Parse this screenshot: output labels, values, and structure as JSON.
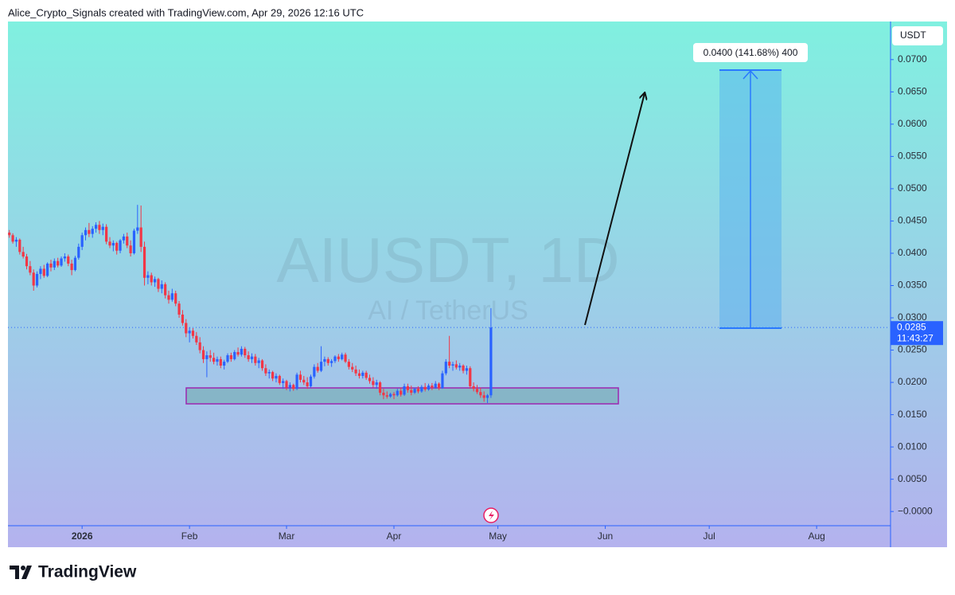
{
  "header": {
    "credit": "Alice_Crypto_Signals created with TradingView.com, Apr 29, 2026 12:16 UTC"
  },
  "chart_data": {
    "type": "candlestick",
    "symbol": "AIUSDT, 1D",
    "description": "AI / TetherUS",
    "currency": "USDT",
    "up_color": "#2962ff",
    "down_color": "#f23645",
    "x": [
      -21,
      -20,
      -19,
      -18,
      -17,
      -16,
      -15,
      -14,
      -13,
      -12,
      -11,
      -10,
      -9,
      -8,
      -7,
      -6,
      -5,
      -4,
      -3,
      -2,
      -1,
      0,
      1,
      2,
      3,
      4,
      5,
      6,
      7,
      8,
      9,
      10,
      11,
      12,
      13,
      14,
      15,
      16,
      17,
      18,
      19,
      20,
      21,
      22,
      23,
      24,
      25,
      26,
      27,
      28,
      29,
      30,
      31,
      32,
      33,
      34,
      35,
      36,
      37,
      38,
      39,
      40,
      41,
      42,
      43,
      44,
      45,
      46,
      47,
      48,
      49,
      50,
      51,
      52,
      53,
      54,
      55,
      56,
      57,
      58,
      59,
      60,
      61,
      62,
      63,
      64,
      65,
      66,
      67,
      68,
      69,
      70,
      71,
      72,
      73,
      74,
      75,
      76,
      77,
      78,
      79,
      80,
      81,
      82,
      83,
      84,
      85,
      86,
      87,
      88,
      89,
      90,
      91,
      92,
      93,
      94,
      95,
      96,
      97,
      98,
      99,
      100,
      101,
      102,
      103,
      104,
      105,
      106,
      107,
      108,
      109,
      110,
      111,
      112,
      113,
      114,
      115,
      116,
      117,
      118
    ],
    "ohlc": [
      [
        0.0432,
        0.0436,
        0.0424,
        0.0428
      ],
      [
        0.0428,
        0.0431,
        0.0415,
        0.0418
      ],
      [
        0.0418,
        0.0425,
        0.041,
        0.0421
      ],
      [
        0.0421,
        0.0423,
        0.0398,
        0.0402
      ],
      [
        0.0402,
        0.041,
        0.0392,
        0.0395
      ],
      [
        0.0395,
        0.0399,
        0.0375,
        0.038
      ],
      [
        0.038,
        0.0388,
        0.0366,
        0.037
      ],
      [
        0.037,
        0.0375,
        0.0342,
        0.035
      ],
      [
        0.035,
        0.0372,
        0.0347,
        0.0368
      ],
      [
        0.0368,
        0.038,
        0.036,
        0.0376
      ],
      [
        0.0376,
        0.0382,
        0.0362,
        0.0365
      ],
      [
        0.0365,
        0.0386,
        0.0363,
        0.0384
      ],
      [
        0.0384,
        0.039,
        0.0372,
        0.0378
      ],
      [
        0.0378,
        0.0392,
        0.0374,
        0.0388
      ],
      [
        0.0388,
        0.0393,
        0.0378,
        0.0381
      ],
      [
        0.0381,
        0.0395,
        0.0379,
        0.0392
      ],
      [
        0.0392,
        0.04,
        0.0387,
        0.0395
      ],
      [
        0.0395,
        0.0398,
        0.038,
        0.0384
      ],
      [
        0.0384,
        0.039,
        0.0366,
        0.0374
      ],
      [
        0.0374,
        0.0396,
        0.0372,
        0.0393
      ],
      [
        0.0393,
        0.0415,
        0.039,
        0.041
      ],
      [
        0.041,
        0.0432,
        0.0405,
        0.0428
      ],
      [
        0.0428,
        0.044,
        0.042,
        0.0436
      ],
      [
        0.0436,
        0.0447,
        0.0425,
        0.043
      ],
      [
        0.043,
        0.0442,
        0.0424,
        0.0438
      ],
      [
        0.0438,
        0.0448,
        0.0432,
        0.0444
      ],
      [
        0.0444,
        0.045,
        0.043,
        0.0436
      ],
      [
        0.0436,
        0.0446,
        0.0428,
        0.0441
      ],
      [
        0.0441,
        0.0445,
        0.0414,
        0.0418
      ],
      [
        0.0418,
        0.0425,
        0.0408,
        0.0412
      ],
      [
        0.0412,
        0.042,
        0.0403,
        0.0416
      ],
      [
        0.0416,
        0.0418,
        0.0398,
        0.0404
      ],
      [
        0.0404,
        0.0422,
        0.04,
        0.042
      ],
      [
        0.042,
        0.043,
        0.0415,
        0.0426
      ],
      [
        0.0426,
        0.0432,
        0.0408,
        0.0412
      ],
      [
        0.0412,
        0.042,
        0.0395,
        0.04
      ],
      [
        0.04,
        0.0438,
        0.0398,
        0.0435
      ],
      [
        0.0435,
        0.0475,
        0.043,
        0.044
      ],
      [
        0.044,
        0.0474,
        0.0402,
        0.041
      ],
      [
        0.041,
        0.0418,
        0.035,
        0.0362
      ],
      [
        0.0362,
        0.0372,
        0.0352,
        0.0366
      ],
      [
        0.0366,
        0.037,
        0.035,
        0.0355
      ],
      [
        0.0355,
        0.0364,
        0.0348,
        0.036
      ],
      [
        0.036,
        0.0362,
        0.034,
        0.0345
      ],
      [
        0.0345,
        0.0358,
        0.0338,
        0.0352
      ],
      [
        0.0352,
        0.0355,
        0.033,
        0.0335
      ],
      [
        0.0335,
        0.0342,
        0.0322,
        0.0328
      ],
      [
        0.0328,
        0.0345,
        0.0325,
        0.0338
      ],
      [
        0.0338,
        0.0342,
        0.0318,
        0.0322
      ],
      [
        0.0322,
        0.0326,
        0.03,
        0.0305
      ],
      [
        0.0305,
        0.0312,
        0.0288,
        0.0292
      ],
      [
        0.0292,
        0.0298,
        0.027,
        0.0276
      ],
      [
        0.0276,
        0.0285,
        0.0262,
        0.028
      ],
      [
        0.028,
        0.0284,
        0.0268,
        0.0272
      ],
      [
        0.0272,
        0.0278,
        0.0258,
        0.0262
      ],
      [
        0.0262,
        0.027,
        0.0245,
        0.025
      ],
      [
        0.025,
        0.0256,
        0.023,
        0.0236
      ],
      [
        0.0236,
        0.0248,
        0.0208,
        0.0242
      ],
      [
        0.0242,
        0.025,
        0.0232,
        0.0238
      ],
      [
        0.0238,
        0.0246,
        0.0228,
        0.0232
      ],
      [
        0.0232,
        0.024,
        0.0226,
        0.0236
      ],
      [
        0.0236,
        0.024,
        0.0222,
        0.0226
      ],
      [
        0.0226,
        0.0235,
        0.022,
        0.0232
      ],
      [
        0.0232,
        0.0245,
        0.023,
        0.0242
      ],
      [
        0.0242,
        0.0246,
        0.0232,
        0.0236
      ],
      [
        0.0236,
        0.025,
        0.0234,
        0.0247
      ],
      [
        0.0247,
        0.0254,
        0.024,
        0.0243
      ],
      [
        0.0243,
        0.0256,
        0.024,
        0.0252
      ],
      [
        0.0252,
        0.0255,
        0.0238,
        0.0242
      ],
      [
        0.0242,
        0.0248,
        0.0232,
        0.0236
      ],
      [
        0.0236,
        0.0245,
        0.023,
        0.024
      ],
      [
        0.024,
        0.0244,
        0.0226,
        0.023
      ],
      [
        0.023,
        0.0238,
        0.0222,
        0.0234
      ],
      [
        0.0234,
        0.0236,
        0.0218,
        0.0222
      ],
      [
        0.0222,
        0.0228,
        0.021,
        0.0214
      ],
      [
        0.0214,
        0.022,
        0.0206,
        0.0216
      ],
      [
        0.0216,
        0.0218,
        0.0202,
        0.0206
      ],
      [
        0.0206,
        0.0214,
        0.02,
        0.021
      ],
      [
        0.021,
        0.0212,
        0.0196,
        0.0199
      ],
      [
        0.0199,
        0.0206,
        0.019,
        0.0202
      ],
      [
        0.0202,
        0.0204,
        0.0188,
        0.0192
      ],
      [
        0.0192,
        0.02,
        0.0186,
        0.0196
      ],
      [
        0.0196,
        0.0198,
        0.0187,
        0.019
      ],
      [
        0.019,
        0.0215,
        0.0188,
        0.0212
      ],
      [
        0.0212,
        0.0218,
        0.02,
        0.0204
      ],
      [
        0.0204,
        0.021,
        0.0196,
        0.02
      ],
      [
        0.02,
        0.0208,
        0.019,
        0.0194
      ],
      [
        0.0194,
        0.0212,
        0.0192,
        0.0209
      ],
      [
        0.0209,
        0.0228,
        0.0206,
        0.0224
      ],
      [
        0.0224,
        0.023,
        0.0215,
        0.0218
      ],
      [
        0.0218,
        0.0256,
        0.0216,
        0.0232
      ],
      [
        0.0232,
        0.024,
        0.0225,
        0.0236
      ],
      [
        0.0236,
        0.0239,
        0.0226,
        0.023
      ],
      [
        0.023,
        0.0236,
        0.0224,
        0.0233
      ],
      [
        0.0233,
        0.0242,
        0.023,
        0.024
      ],
      [
        0.024,
        0.0244,
        0.0232,
        0.0236
      ],
      [
        0.0236,
        0.0246,
        0.0234,
        0.0243
      ],
      [
        0.0243,
        0.0246,
        0.023,
        0.0232
      ],
      [
        0.0232,
        0.0236,
        0.022,
        0.0224
      ],
      [
        0.0224,
        0.023,
        0.0216,
        0.022
      ],
      [
        0.022,
        0.0226,
        0.021,
        0.0214
      ],
      [
        0.0214,
        0.022,
        0.0206,
        0.021
      ],
      [
        0.021,
        0.0218,
        0.0206,
        0.0215
      ],
      [
        0.0215,
        0.0218,
        0.0204,
        0.0207
      ],
      [
        0.0207,
        0.0212,
        0.0198,
        0.0202
      ],
      [
        0.0202,
        0.0208,
        0.0192,
        0.0196
      ],
      [
        0.0196,
        0.0204,
        0.019,
        0.02
      ],
      [
        0.02,
        0.0202,
        0.018,
        0.0184
      ],
      [
        0.0184,
        0.019,
        0.0174,
        0.018
      ],
      [
        0.018,
        0.0186,
        0.0175,
        0.0178
      ],
      [
        0.0178,
        0.0184,
        0.0176,
        0.0182
      ],
      [
        0.0182,
        0.0185,
        0.0174,
        0.018
      ],
      [
        0.018,
        0.019,
        0.0178,
        0.0187
      ],
      [
        0.0187,
        0.0192,
        0.0178,
        0.0181
      ],
      [
        0.0181,
        0.0198,
        0.0179,
        0.0194
      ],
      [
        0.0194,
        0.0198,
        0.0184,
        0.0188
      ],
      [
        0.0188,
        0.0195,
        0.018,
        0.0184
      ],
      [
        0.0184,
        0.0192,
        0.0182,
        0.019
      ],
      [
        0.019,
        0.0194,
        0.0183,
        0.0186
      ],
      [
        0.0186,
        0.0196,
        0.0184,
        0.0193
      ],
      [
        0.0193,
        0.0199,
        0.0186,
        0.0189
      ],
      [
        0.0189,
        0.0198,
        0.0187,
        0.0195
      ],
      [
        0.0195,
        0.0199,
        0.0188,
        0.0192
      ],
      [
        0.0192,
        0.0202,
        0.019,
        0.0198
      ],
      [
        0.0198,
        0.02,
        0.0188,
        0.0191
      ],
      [
        0.0191,
        0.0218,
        0.019,
        0.0214
      ],
      [
        0.0214,
        0.0236,
        0.0211,
        0.0232
      ],
      [
        0.0232,
        0.0272,
        0.0222,
        0.0226
      ],
      [
        0.0226,
        0.0232,
        0.0218,
        0.0228
      ],
      [
        0.0228,
        0.0234,
        0.022,
        0.0223
      ],
      [
        0.0223,
        0.023,
        0.0218,
        0.0226
      ],
      [
        0.0226,
        0.0228,
        0.0214,
        0.0218
      ],
      [
        0.0218,
        0.0226,
        0.0212,
        0.0222
      ],
      [
        0.0222,
        0.0225,
        0.019,
        0.0194
      ],
      [
        0.0194,
        0.02,
        0.0186,
        0.019
      ],
      [
        0.019,
        0.0196,
        0.0182,
        0.0185
      ],
      [
        0.0185,
        0.0192,
        0.0176,
        0.018
      ],
      [
        0.018,
        0.0186,
        0.017,
        0.0176
      ],
      [
        0.0176,
        0.0182,
        0.0168,
        0.018
      ],
      [
        0.018,
        0.0315,
        0.0176,
        0.0285
      ]
    ],
    "xlim": [
      -21.4,
      233.1
    ],
    "xticks": [
      {
        "value": 0,
        "label": "2026"
      },
      {
        "value": 31,
        "label": "Feb"
      },
      {
        "value": 59,
        "label": "Mar"
      },
      {
        "value": 90,
        "label": "Apr"
      },
      {
        "value": 120,
        "label": "May"
      },
      {
        "value": 151,
        "label": "Jun"
      },
      {
        "value": 181,
        "label": "Jul"
      },
      {
        "value": 212,
        "label": "Aug"
      }
    ],
    "ylim": [
      -0.0022,
      0.0759
    ],
    "yticks": [
      {
        "value": 0,
        "label": "−0.0000"
      },
      {
        "value": 0.005,
        "label": "0.0050"
      },
      {
        "value": 0.01,
        "label": "0.0100"
      },
      {
        "value": 0.015,
        "label": "0.0150"
      },
      {
        "value": 0.02,
        "label": "0.0200"
      },
      {
        "value": 0.025,
        "label": "0.0250"
      },
      {
        "value": 0.03,
        "label": "0.0300"
      },
      {
        "value": 0.035,
        "label": "0.0350"
      },
      {
        "value": 0.04,
        "label": "0.0400"
      },
      {
        "value": 0.045,
        "label": "0.0450"
      },
      {
        "value": 0.05,
        "label": "0.0500"
      },
      {
        "value": 0.055,
        "label": "0.0550"
      },
      {
        "value": 0.06,
        "label": "0.0600"
      },
      {
        "value": 0.065,
        "label": "0.0650"
      },
      {
        "value": 0.07,
        "label": "0.0700"
      }
    ],
    "last_price": {
      "value": 0.0285,
      "label": "0.0285"
    },
    "countdown": "11:43:27",
    "measure_label": "0.0400 (141.68%) 400"
  },
  "footer": {
    "brand": "TradingView"
  }
}
